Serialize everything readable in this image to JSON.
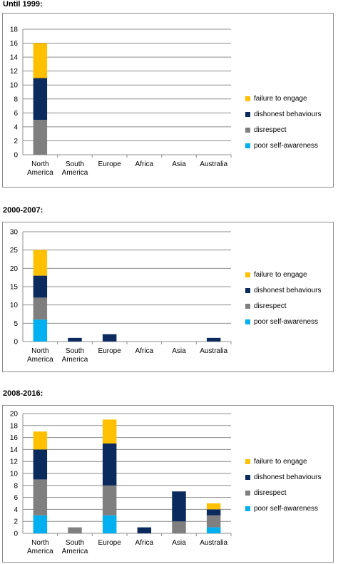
{
  "legend_labels": {
    "failure": "failure to engage",
    "dishonest": "dishonest behaviours",
    "disrespect": "disrespect",
    "poor": "poor self-awareness"
  },
  "colors": {
    "failure": "#FFC000",
    "dishonest": "#0B2A5E",
    "disrespect": "#7F7F7F",
    "poor": "#00B0F0",
    "gridline": "#8C8C8C"
  },
  "chart_data": [
    {
      "type": "bar",
      "stacked": true,
      "title": "Until 1999:",
      "categories": [
        "North America",
        "South America",
        "Europe",
        "Africa",
        "Asia",
        "Australia"
      ],
      "series": [
        {
          "name": "poor self-awareness",
          "key": "poor",
          "values": [
            0,
            0,
            0,
            0,
            0,
            0
          ]
        },
        {
          "name": "disrespect",
          "key": "disrespect",
          "values": [
            5,
            0,
            0,
            0,
            0,
            0
          ]
        },
        {
          "name": "dishonest behaviours",
          "key": "dishonest",
          "values": [
            6,
            0,
            0,
            0,
            0,
            0
          ]
        },
        {
          "name": "failure to engage",
          "key": "failure",
          "values": [
            5,
            0,
            0,
            0,
            0,
            0
          ]
        }
      ],
      "ylim": [
        0,
        18
      ],
      "yticks": [
        0,
        2,
        4,
        6,
        8,
        10,
        12,
        14,
        16,
        18
      ],
      "grid": true,
      "legend": "right"
    },
    {
      "type": "bar",
      "stacked": true,
      "title": "2000-2007:",
      "categories": [
        "North America",
        "South America",
        "Europe",
        "Africa",
        "Asia",
        "Australia"
      ],
      "series": [
        {
          "name": "poor self-awareness",
          "key": "poor",
          "values": [
            6,
            0,
            0,
            0,
            0,
            0
          ]
        },
        {
          "name": "disrespect",
          "key": "disrespect",
          "values": [
            6,
            0,
            0,
            0,
            0,
            0
          ]
        },
        {
          "name": "dishonest behaviours",
          "key": "dishonest",
          "values": [
            6,
            1,
            2,
            0,
            0,
            1
          ]
        },
        {
          "name": "failure to engage",
          "key": "failure",
          "values": [
            7,
            0,
            0,
            0,
            0,
            0
          ]
        }
      ],
      "ylim": [
        0,
        30
      ],
      "yticks": [
        0,
        5,
        10,
        15,
        20,
        25,
        30
      ],
      "grid": true,
      "legend": "right"
    },
    {
      "type": "bar",
      "stacked": true,
      "title": "2008-2016:",
      "categories": [
        "North America",
        "South America",
        "Europe",
        "Africa",
        "Asia",
        "Australia"
      ],
      "series": [
        {
          "name": "poor self-awareness",
          "key": "poor",
          "values": [
            3,
            0,
            3,
            0,
            0,
            1
          ]
        },
        {
          "name": "disrespect",
          "key": "disrespect",
          "values": [
            6,
            1,
            5,
            0,
            2,
            2
          ]
        },
        {
          "name": "dishonest behaviours",
          "key": "dishonest",
          "values": [
            5,
            0,
            7,
            1,
            5,
            1
          ]
        },
        {
          "name": "failure to engage",
          "key": "failure",
          "values": [
            3,
            0,
            4,
            0,
            0,
            1
          ]
        }
      ],
      "ylim": [
        0,
        20
      ],
      "yticks": [
        0,
        2,
        4,
        6,
        8,
        10,
        12,
        14,
        16,
        18,
        20
      ],
      "grid": true,
      "legend": "right"
    }
  ]
}
